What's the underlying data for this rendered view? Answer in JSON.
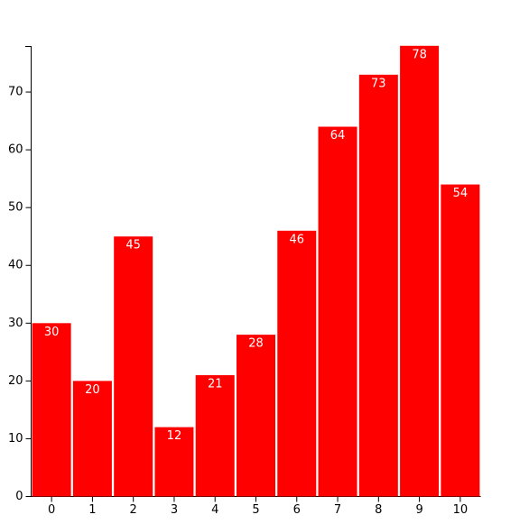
{
  "chart_data": {
    "type": "bar",
    "categories": [
      "0",
      "1",
      "2",
      "3",
      "4",
      "5",
      "6",
      "7",
      "8",
      "9",
      "10"
    ],
    "values": [
      30,
      20,
      45,
      12,
      21,
      28,
      46,
      64,
      73,
      78,
      54
    ],
    "color": "#ff0000",
    "ylim": [
      0,
      78
    ],
    "yticks": [
      0,
      10,
      20,
      30,
      40,
      50,
      60,
      70
    ]
  }
}
